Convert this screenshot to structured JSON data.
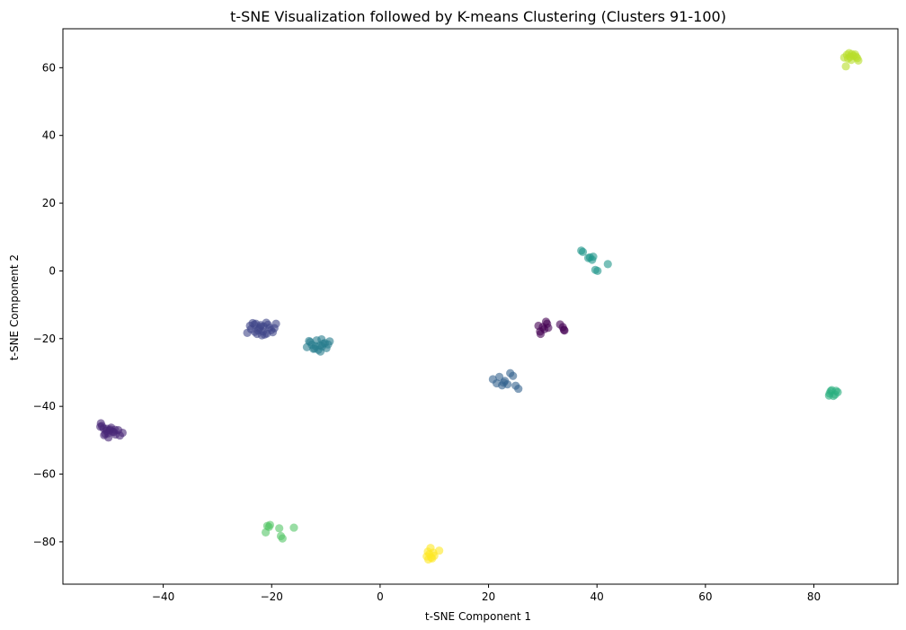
{
  "chart_data": {
    "type": "scatter",
    "title": "t-SNE Visualization followed by K-means Clustering (Clusters 91-100)",
    "xlabel": "t-SNE Component 1",
    "ylabel": "t-SNE Component 2",
    "xlim": [
      -58.5,
      95.5
    ],
    "ylim": [
      -92.5,
      71.5
    ],
    "xticks": [
      -40,
      -20,
      0,
      20,
      40,
      60,
      80
    ],
    "yticks": [
      -80,
      -60,
      -40,
      -20,
      0,
      20,
      40,
      60
    ],
    "grid": false,
    "legend": "none",
    "point_alpha": 0.6,
    "series": [
      {
        "color": "#440154",
        "x": [
          29.2,
          30.0,
          30.6,
          29.6,
          31.0,
          30.3,
          33.2,
          33.7,
          34.0,
          33.9,
          30.8,
          29.5
        ],
        "y": [
          -16.2,
          -16.6,
          -15.0,
          -18.6,
          -16.8,
          -17.2,
          -15.8,
          -16.6,
          -17.6,
          -17.4,
          -15.6,
          -17.9
        ]
      },
      {
        "color": "#482677",
        "x": [
          -51.5,
          -51.0,
          -50.5,
          -50.2,
          -49.8,
          -49.3,
          -48.8,
          -48.3,
          -47.5,
          -50.9,
          -50.1,
          -49.6,
          -51.3,
          -48.9,
          -50.7,
          -49.1,
          -51.6,
          -48.0,
          -49.9,
          -50.4
        ],
        "y": [
          -45.0,
          -46.5,
          -47.2,
          -48.0,
          -46.8,
          -47.5,
          -48.3,
          -47.0,
          -47.8,
          -48.5,
          -49.2,
          -46.3,
          -45.8,
          -46.9,
          -48.1,
          -47.6,
          -46.0,
          -48.6,
          -47.1,
          -46.6
        ]
      },
      {
        "color": "#404688",
        "x": [
          -24.5,
          -23.8,
          -23.2,
          -22.7,
          -22.1,
          -21.6,
          -21.0,
          -20.4,
          -19.8,
          -19.2,
          -23.5,
          -22.3,
          -21.3,
          -20.1,
          -24.0,
          -22.9,
          -21.8,
          -20.7,
          -19.5,
          -23.1,
          -22.0,
          -20.9,
          -21.5,
          -22.5
        ],
        "y": [
          -18.3,
          -17.2,
          -15.8,
          -18.6,
          -16.5,
          -17.9,
          -15.3,
          -16.8,
          -18.1,
          -15.6,
          -15.4,
          -17.0,
          -18.8,
          -17.5,
          -16.2,
          -15.6,
          -19.0,
          -15.9,
          -16.9,
          -18.0,
          -16.0,
          -18.5,
          -16.4,
          -17.6
        ]
      },
      {
        "color": "#33638d",
        "x": [
          20.8,
          21.5,
          22.0,
          22.5,
          23.0,
          23.5,
          24.0,
          24.5,
          25.0,
          25.5,
          22.8
        ],
        "y": [
          -32.0,
          -33.2,
          -31.3,
          -33.8,
          -32.5,
          -33.5,
          -30.2,
          -31.0,
          -33.9,
          -34.8,
          -33.0
        ]
      },
      {
        "color": "#287d8e",
        "x": [
          -13.5,
          -12.9,
          -12.3,
          -11.7,
          -11.1,
          -10.5,
          -9.9,
          -9.3,
          -12.6,
          -11.4,
          -10.2,
          -13.1,
          -11.9,
          -10.8,
          -12.1,
          -11.0,
          -9.6,
          -10.7
        ],
        "y": [
          -22.5,
          -21.0,
          -23.0,
          -20.5,
          -22.0,
          -21.5,
          -22.8,
          -20.8,
          -21.8,
          -23.3,
          -21.3,
          -20.7,
          -22.2,
          -20.2,
          -22.9,
          -23.8,
          -21.7,
          -22.3
        ]
      },
      {
        "color": "#1f968b",
        "x": [
          37.1,
          38.7,
          39.1,
          38.4,
          39.7,
          40.1,
          42.0,
          37.4,
          39.3
        ],
        "y": [
          6.0,
          4.0,
          3.3,
          3.8,
          0.3,
          0.0,
          2.0,
          5.6,
          4.2
        ]
      },
      {
        "color": "#29af7f",
        "x": [
          82.8,
          83.3,
          83.9,
          84.4,
          83.1,
          83.6,
          82.9,
          84.1
        ],
        "y": [
          -36.8,
          -35.2,
          -36.5,
          -35.8,
          -35.5,
          -36.9,
          -36.2,
          -35.4
        ]
      },
      {
        "color": "#55c667",
        "x": [
          -20.8,
          -20.3,
          -21.1,
          -18.6,
          -18.3,
          -15.9,
          -18.0,
          -20.5
        ],
        "y": [
          -75.3,
          -75.0,
          -77.2,
          -76.0,
          -78.3,
          -75.8,
          -79.0,
          -75.6
        ]
      },
      {
        "color": "#b8de29",
        "x": [
          85.6,
          86.1,
          86.5,
          86.9,
          87.3,
          87.8,
          88.2,
          86.3,
          87.0,
          87.6,
          85.9,
          86.7,
          88.0
        ],
        "y": [
          63.0,
          63.8,
          64.3,
          62.3,
          63.5,
          63.2,
          62.1,
          62.7,
          64.0,
          63.9,
          60.4,
          63.2,
          62.8
        ]
      },
      {
        "color": "#fde725",
        "x": [
          8.6,
          9.1,
          9.6,
          10.0,
          9.3,
          8.9,
          10.9,
          9.8,
          9.4,
          8.8
        ],
        "y": [
          -84.3,
          -83.6,
          -84.9,
          -84.1,
          -81.8,
          -85.2,
          -82.6,
          -83.2,
          -84.6,
          -82.9
        ]
      }
    ]
  }
}
